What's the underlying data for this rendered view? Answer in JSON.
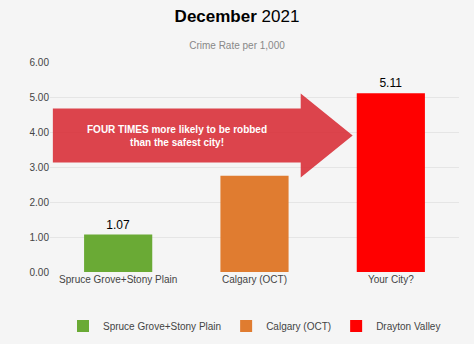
{
  "chart_data": {
    "type": "bar",
    "title": "December 2021",
    "subtitle": "Crime Rate per 1,000",
    "categories": [
      "Spruce Grove+Stony Plain",
      "Calgary (OCT)",
      "Your City?"
    ],
    "series": [
      {
        "name": "Spruce Grove+Stony Plain",
        "color": "#6aaa35",
        "values": [
          1.07,
          null,
          null
        ],
        "value_labels": [
          "1.07",
          null,
          null
        ]
      },
      {
        "name": "Calgary (OCT)",
        "color": "#e07c30",
        "values": [
          null,
          2.75,
          null
        ]
      },
      {
        "name": "Drayton Valley",
        "color": "#ff0000",
        "values": [
          null,
          null,
          5.11
        ],
        "value_labels": [
          null,
          null,
          "5.11"
        ]
      }
    ],
    "ylim": [
      0,
      6.0
    ],
    "yticks": [
      {
        "value": 0.0,
        "label": "0.00"
      },
      {
        "value": 1.0,
        "label": "1.00"
      },
      {
        "value": 2.0,
        "label": "2.00"
      },
      {
        "value": 3.0,
        "label": "3.00"
      },
      {
        "value": 4.0,
        "label": "4.00"
      },
      {
        "value": 5.0,
        "label": "5.00"
      },
      {
        "value": 6.0,
        "label": "6.00"
      }
    ],
    "grid": true,
    "annotation": "FOUR TIMES more likely to be robbed\nthan the safest city!"
  }
}
